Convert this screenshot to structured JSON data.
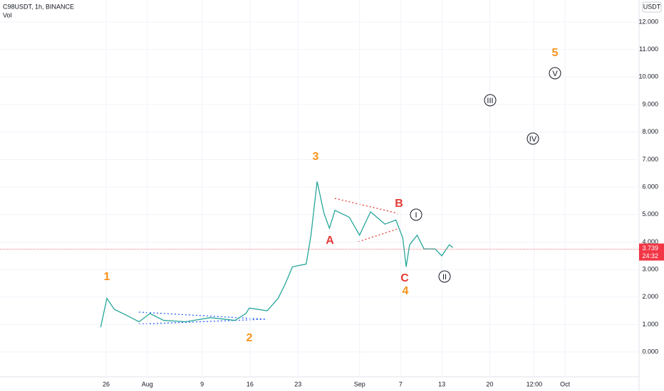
{
  "header": {
    "symbol": "C98USDT, 1h, BINANCE",
    "indicator": "Vol",
    "currency": "USDT"
  },
  "chart_data": {
    "type": "line",
    "color": "#26a69a",
    "x": [
      25.2,
      26.1,
      27.2,
      28.7,
      30.8,
      32.4,
      34.4,
      37.6,
      41.2,
      44.8,
      46.4,
      46.9,
      49.5,
      51.1,
      52.1,
      53.2,
      55.2,
      55.9,
      56.8,
      57.8,
      58.6,
      59.4,
      61.5,
      63.0,
      64.6,
      66.7,
      68.3,
      69.3,
      69.8,
      70.3,
      71.4,
      72.4,
      74.0,
      75.0,
      76.1,
      76.6
    ],
    "values": [
      0.9,
      1.95,
      1.55,
      1.37,
      1.1,
      1.4,
      1.15,
      1.1,
      1.25,
      1.15,
      1.4,
      1.6,
      1.5,
      1.95,
      2.45,
      3.1,
      3.2,
      4.25,
      6.2,
      5.05,
      4.5,
      5.15,
      4.9,
      4.25,
      5.1,
      4.65,
      4.8,
      4.15,
      3.1,
      3.9,
      4.25,
      3.75,
      3.75,
      3.5,
      3.9,
      3.8
    ],
    "xlim": [
      10.5,
      103.8
    ],
    "xticks": [
      {
        "value": 26,
        "label": "26"
      },
      {
        "value": 32,
        "label": "Aug"
      },
      {
        "value": 40,
        "label": "9"
      },
      {
        "value": 47,
        "label": "16"
      },
      {
        "value": 54,
        "label": "23"
      },
      {
        "value": 63,
        "label": "Sep"
      },
      {
        "value": 69,
        "label": "7"
      },
      {
        "value": 75,
        "label": "13"
      },
      {
        "value": 82,
        "label": "20"
      },
      {
        "value": 88.5,
        "label": "12:00"
      },
      {
        "value": 93,
        "label": "Oct"
      }
    ],
    "ylim": [
      -0.9,
      12.8
    ],
    "yticks": [
      {
        "value": 0,
        "label": "0.000"
      },
      {
        "value": 1,
        "label": "1.000"
      },
      {
        "value": 2,
        "label": "2.000"
      },
      {
        "value": 3,
        "label": "3.000"
      },
      {
        "value": 4,
        "label": "4.000"
      },
      {
        "value": 5,
        "label": "5.000"
      },
      {
        "value": 6,
        "label": "6.000"
      },
      {
        "value": 7,
        "label": "7.000"
      },
      {
        "value": 8,
        "label": "8.000"
      },
      {
        "value": 9,
        "label": "9.000"
      },
      {
        "value": 10,
        "label": "10.000"
      },
      {
        "value": 11,
        "label": "11.000"
      },
      {
        "value": 12,
        "label": "12.000"
      }
    ],
    "last_price": 3.739,
    "last_price_label": "3.739",
    "countdown": "24:32",
    "annotations": [
      {
        "text": "1",
        "color": "#f7931a"
      },
      {
        "text": "2",
        "color": "#f7931a"
      },
      {
        "text": "3",
        "color": "#f7931a"
      },
      {
        "text": "4",
        "color": "#f7931a"
      },
      {
        "text": "5",
        "color": "#f7931a"
      },
      {
        "text": "A",
        "color": "#e53935"
      },
      {
        "text": "B",
        "color": "#e53935"
      },
      {
        "text": "C",
        "color": "#e53935"
      },
      {
        "text": "I",
        "color": "#131722"
      },
      {
        "text": "II",
        "color": "#131722"
      },
      {
        "text": "III",
        "color": "#131722"
      },
      {
        "text": "IV",
        "color": "#131722"
      },
      {
        "text": "V",
        "color": "#131722"
      }
    ]
  }
}
